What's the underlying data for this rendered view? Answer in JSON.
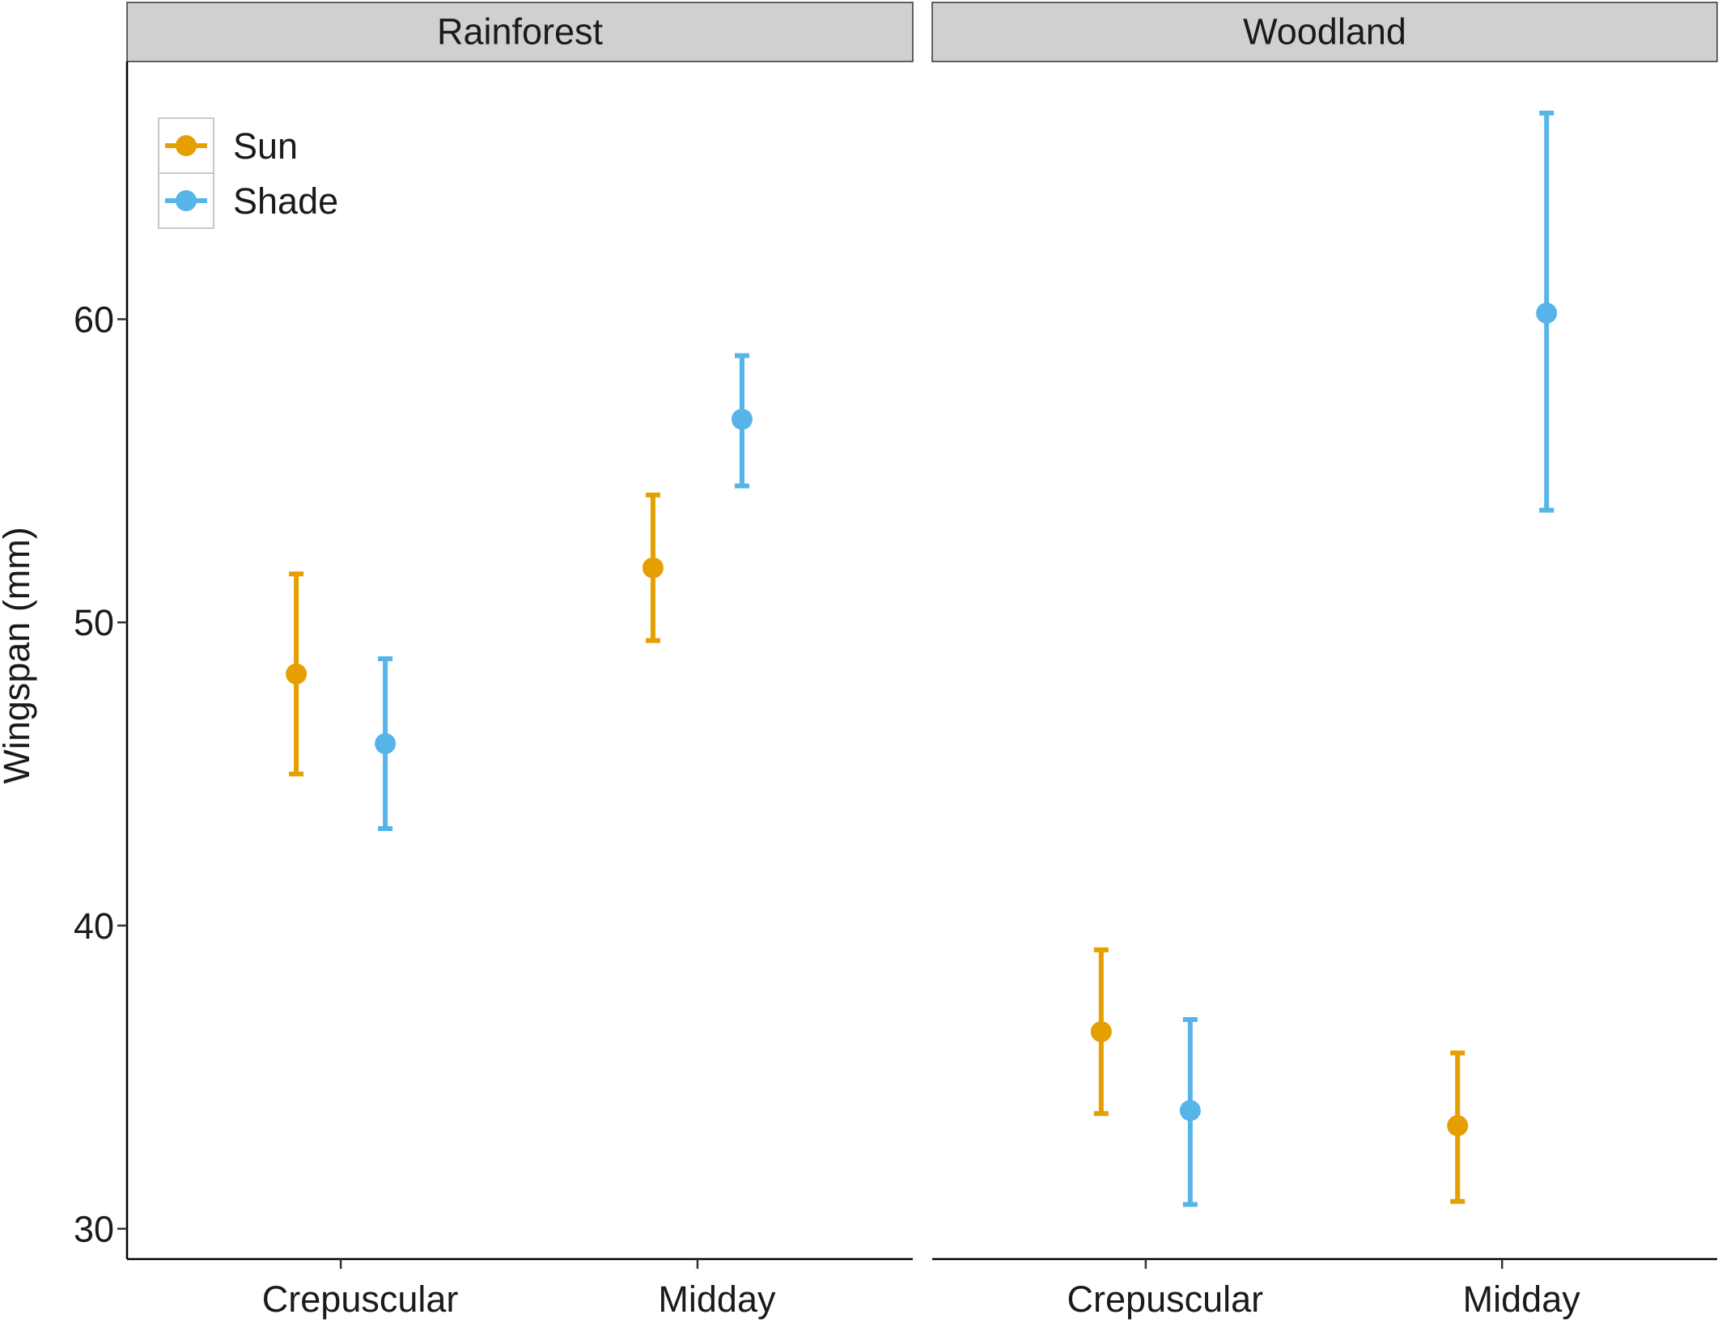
{
  "chart_data": {
    "type": "scatter",
    "subtype": "point-with-error-bars, faceted",
    "ylabel": "Wingspan (mm)",
    "xlabel": "",
    "ylim": [
      29,
      68.5
    ],
    "yticks": [
      30,
      40,
      50,
      60
    ],
    "categories": [
      "Crepuscular",
      "Midday"
    ],
    "grid": false,
    "legend": {
      "placement": "top-left",
      "entries": [
        "Sun",
        "Shade"
      ]
    },
    "colors": {
      "Sun": "#E69F00",
      "Shade": "#56B4E9"
    },
    "panels": [
      {
        "title": "Rainforest",
        "series": [
          {
            "name": "Sun",
            "points": [
              {
                "x": "Crepuscular",
                "y": 48.3,
                "ymin": 45.0,
                "ymax": 51.6
              },
              {
                "x": "Midday",
                "y": 51.8,
                "ymin": 49.4,
                "ymax": 54.2
              }
            ]
          },
          {
            "name": "Shade",
            "points": [
              {
                "x": "Crepuscular",
                "y": 46.0,
                "ymin": 43.2,
                "ymax": 48.8
              },
              {
                "x": "Midday",
                "y": 56.7,
                "ymin": 54.5,
                "ymax": 58.8
              }
            ]
          }
        ]
      },
      {
        "title": "Woodland",
        "series": [
          {
            "name": "Sun",
            "points": [
              {
                "x": "Crepuscular",
                "y": 36.5,
                "ymin": 33.8,
                "ymax": 39.2
              },
              {
                "x": "Midday",
                "y": 33.4,
                "ymin": 30.9,
                "ymax": 35.8
              }
            ]
          },
          {
            "name": "Shade",
            "points": [
              {
                "x": "Crepuscular",
                "y": 33.9,
                "ymin": 30.8,
                "ymax": 36.9
              },
              {
                "x": "Midday",
                "y": 60.2,
                "ymin": 53.7,
                "ymax": 66.8
              }
            ]
          }
        ]
      }
    ]
  }
}
